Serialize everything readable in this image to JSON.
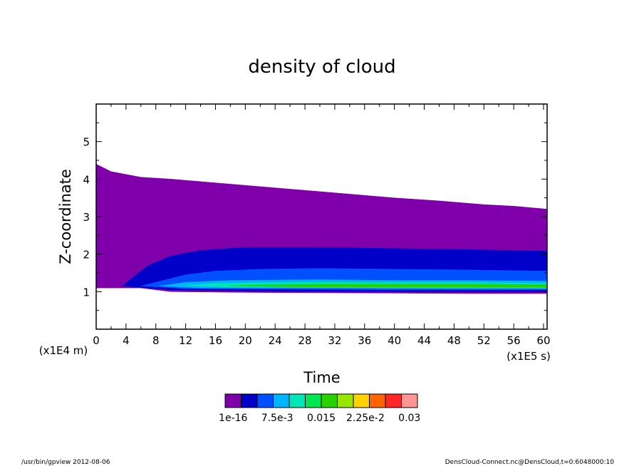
{
  "chart_data": {
    "type": "contour",
    "title": "density of cloud",
    "xlabel": "Time",
    "ylabel": "Z-coordinate",
    "x_unit": "(x1E5 s)",
    "y_unit": "(x1E4 m)",
    "xlim": [
      0,
      60.48
    ],
    "ylim": [
      0,
      6
    ],
    "x_ticks": [
      "0",
      "4",
      "8",
      "12",
      "16",
      "20",
      "24",
      "28",
      "32",
      "36",
      "40",
      "44",
      "48",
      "52",
      "56",
      "60"
    ],
    "x_tick_values": [
      0,
      4,
      8,
      12,
      16,
      20,
      24,
      28,
      32,
      36,
      40,
      44,
      48,
      52,
      56,
      60
    ],
    "y_ticks": [
      "1",
      "2",
      "3",
      "4",
      "5"
    ],
    "y_tick_values": [
      1,
      2,
      3,
      4,
      5
    ],
    "colorbar": {
      "colors": [
        "#7f00aa",
        "#0000c8",
        "#0050ff",
        "#00b4ff",
        "#00e6b4",
        "#00e650",
        "#28d200",
        "#96e600",
        "#ffd200",
        "#ff6400",
        "#ff2828",
        "#ff9696"
      ],
      "tick_labels": [
        "1e-16",
        "7.5e-3",
        "0.015",
        "2.25e-2",
        "0.03"
      ]
    },
    "regions": [
      {
        "level": 1,
        "color": "#7f00aa",
        "top": [
          [
            0,
            4.4
          ],
          [
            2,
            4.2
          ],
          [
            6,
            4.05
          ],
          [
            10,
            4.0
          ],
          [
            16,
            3.9
          ],
          [
            22,
            3.8
          ],
          [
            28,
            3.7
          ],
          [
            34,
            3.6
          ],
          [
            40,
            3.5
          ],
          [
            46,
            3.42
          ],
          [
            52,
            3.32
          ],
          [
            56,
            3.28
          ],
          [
            60.48,
            3.2
          ]
        ],
        "bottom": [
          [
            0,
            1.1
          ],
          [
            6,
            1.1
          ],
          [
            10,
            1.0
          ],
          [
            20,
            0.98
          ],
          [
            30,
            0.97
          ],
          [
            40,
            0.96
          ],
          [
            50,
            0.95
          ],
          [
            60.48,
            0.95
          ]
        ]
      },
      {
        "level": 2,
        "color": "#0000c8",
        "top": [
          [
            3.5,
            1.15
          ],
          [
            5,
            1.4
          ],
          [
            7,
            1.7
          ],
          [
            10,
            1.95
          ],
          [
            14,
            2.1
          ],
          [
            20,
            2.18
          ],
          [
            30,
            2.18
          ],
          [
            40,
            2.15
          ],
          [
            50,
            2.12
          ],
          [
            60.48,
            2.08
          ]
        ],
        "bottom": [
          [
            3.5,
            1.15
          ],
          [
            10,
            1.05
          ],
          [
            20,
            1.02
          ],
          [
            30,
            1.01
          ],
          [
            40,
            1.0
          ],
          [
            50,
            1.0
          ],
          [
            60.48,
            1.0
          ]
        ]
      },
      {
        "level": 3,
        "color": "#0050ff",
        "top": [
          [
            6,
            1.15
          ],
          [
            9,
            1.3
          ],
          [
            12,
            1.45
          ],
          [
            16,
            1.55
          ],
          [
            22,
            1.6
          ],
          [
            30,
            1.62
          ],
          [
            40,
            1.6
          ],
          [
            50,
            1.58
          ],
          [
            60.48,
            1.55
          ]
        ],
        "bottom": [
          [
            6,
            1.15
          ],
          [
            12,
            1.08
          ],
          [
            20,
            1.07
          ],
          [
            30,
            1.06
          ],
          [
            40,
            1.05
          ],
          [
            50,
            1.05
          ],
          [
            60.48,
            1.05
          ]
        ]
      },
      {
        "level": 4,
        "color": "#00b4ff",
        "top": [
          [
            8.5,
            1.15
          ],
          [
            12,
            1.25
          ],
          [
            18,
            1.3
          ],
          [
            30,
            1.32
          ],
          [
            40,
            1.3
          ],
          [
            50,
            1.3
          ],
          [
            60.48,
            1.28
          ]
        ],
        "bottom": [
          [
            8.5,
            1.15
          ],
          [
            14,
            1.1
          ],
          [
            20,
            1.1
          ],
          [
            40,
            1.09
          ],
          [
            60.48,
            1.08
          ]
        ]
      },
      {
        "level": 5,
        "color": "#00e6b4",
        "top": [
          [
            12,
            1.16
          ],
          [
            16,
            1.22
          ],
          [
            22,
            1.24
          ],
          [
            30,
            1.25
          ],
          [
            40,
            1.24
          ],
          [
            50,
            1.24
          ],
          [
            60.48,
            1.22
          ]
        ],
        "bottom": [
          [
            12,
            1.16
          ],
          [
            18,
            1.12
          ],
          [
            30,
            1.11
          ],
          [
            40,
            1.1
          ],
          [
            60.48,
            1.1
          ]
        ]
      },
      {
        "level": 6,
        "color": "#28d200",
        "top": [
          [
            18,
            1.16
          ],
          [
            24,
            1.19
          ],
          [
            32,
            1.2
          ],
          [
            40,
            1.2
          ],
          [
            50,
            1.2
          ],
          [
            60.48,
            1.19
          ]
        ],
        "bottom": [
          [
            18,
            1.16
          ],
          [
            26,
            1.13
          ],
          [
            40,
            1.12
          ],
          [
            60.48,
            1.12
          ]
        ]
      }
    ]
  },
  "footer": {
    "left": "/usr/bin/gpview   2012-08-06",
    "right": "DensCloud-Connect.nc@DensCloud,t=0:6048000:10"
  }
}
